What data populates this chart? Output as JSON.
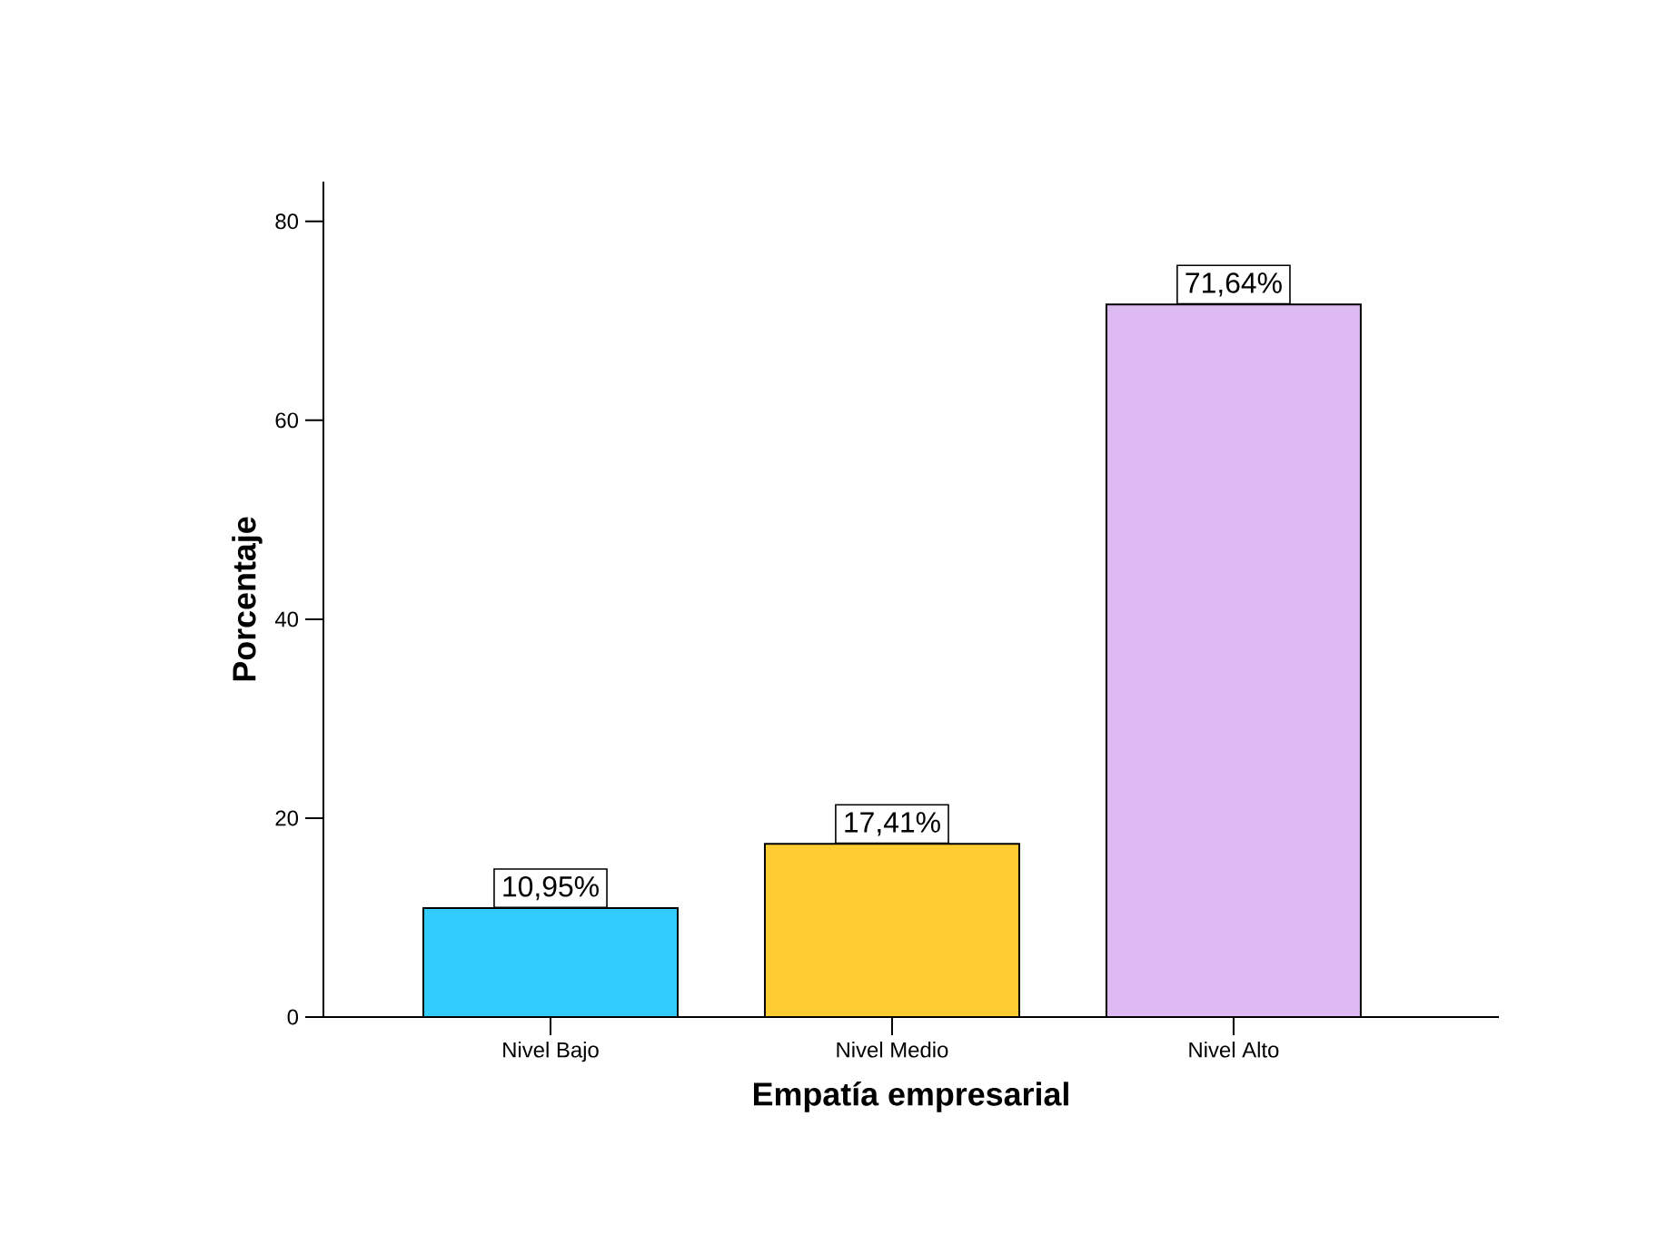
{
  "chart_data": {
    "type": "bar",
    "xlabel": "Empatía empresarial",
    "ylabel": "Porcentaje",
    "categories": [
      "Nivel Bajo",
      "Nivel Medio",
      "Nivel Alto"
    ],
    "values": [
      10.95,
      17.41,
      71.64
    ],
    "colors": [
      "#33ccff",
      "#ffcc33",
      "#ddbbf2"
    ],
    "value_labels": [
      "10,95%",
      "17,41%",
      "71,64%"
    ],
    "ylim": [
      0,
      84
    ],
    "yticks": [
      0,
      20,
      40,
      60,
      80
    ],
    "grid": false
  }
}
